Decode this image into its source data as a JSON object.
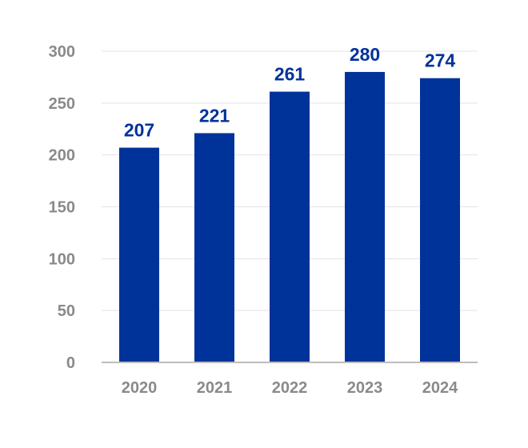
{
  "chart_data": {
    "type": "bar",
    "categories": [
      "2020",
      "2021",
      "2022",
      "2023",
      "2024"
    ],
    "values": [
      207,
      221,
      261,
      280,
      274
    ],
    "data_labels": [
      "207",
      "221",
      "261",
      "280",
      "274"
    ],
    "y_ticks": [
      0,
      50,
      100,
      150,
      200,
      250,
      300
    ],
    "y_tick_labels": [
      "0",
      "50",
      "100",
      "150",
      "200",
      "250",
      "300"
    ],
    "ylim": [
      0,
      300
    ],
    "grid": true,
    "legend": "none",
    "title": "",
    "xlabel": "",
    "ylabel": "",
    "colors": {
      "bar": "#003399",
      "data_label": "#003399",
      "tick_label": "#8a8a8a",
      "grid": "#e3e3e3",
      "axis": "#bdbdbd"
    }
  }
}
